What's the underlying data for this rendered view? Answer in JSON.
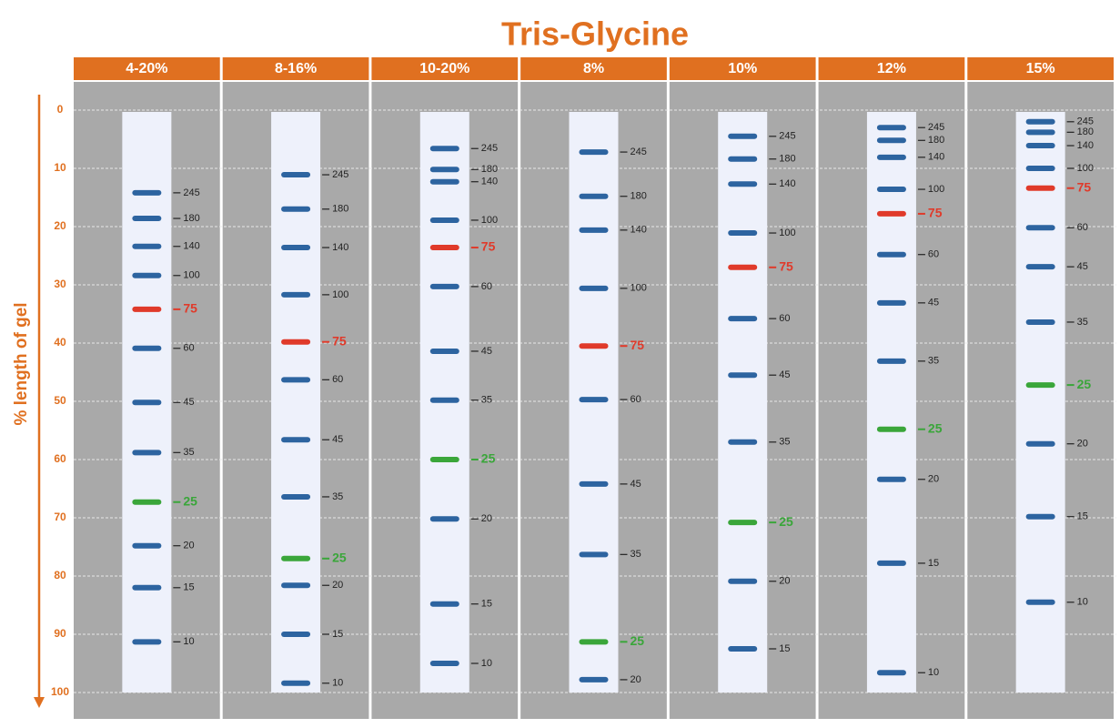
{
  "chart_data": {
    "type": "ladder",
    "title": "Tris-Glycine",
    "y_label": "% length of gel",
    "ylim": [
      0,
      100
    ],
    "yticks": [
      0,
      10,
      20,
      30,
      40,
      50,
      60,
      70,
      80,
      90,
      100
    ],
    "grid": true,
    "band_color": "#2d64a0",
    "series": [
      {
        "name": "4-20%",
        "values": [
          14.2,
          18.6,
          23.4,
          28.4,
          34.2,
          40.9,
          50.2,
          58.8,
          67.3,
          74.8,
          82.0,
          91.3
        ],
        "labels": [
          "245",
          "180",
          "140",
          "100",
          "75",
          "60",
          "45",
          "35",
          "25",
          "20",
          "15",
          "10"
        ],
        "colors": [
          "#2d64a0",
          "#2d64a0",
          "#2d64a0",
          "#2d64a0",
          "#e03a2a",
          "#2d64a0",
          "#2d64a0",
          "#2d64a0",
          "#3aa63a",
          "#2d64a0",
          "#2d64a0",
          "#2d64a0"
        ]
      },
      {
        "name": "8-16%",
        "values": [
          11.1,
          17.0,
          23.6,
          31.7,
          39.8,
          46.3,
          56.6,
          66.4,
          77.0,
          81.6,
          90.0,
          98.4
        ],
        "labels": [
          "245",
          "180",
          "140",
          "100",
          "75",
          "60",
          "45",
          "35",
          "25",
          "20",
          "15",
          "10"
        ],
        "colors": [
          "#2d64a0",
          "#2d64a0",
          "#2d64a0",
          "#2d64a0",
          "#e03a2a",
          "#2d64a0",
          "#2d64a0",
          "#2d64a0",
          "#3aa63a",
          "#2d64a0",
          "#2d64a0",
          "#2d64a0"
        ]
      },
      {
        "name": "10-20%",
        "values": [
          6.6,
          10.2,
          12.3,
          18.9,
          23.6,
          30.3,
          41.4,
          49.8,
          60.0,
          70.2,
          84.8,
          95.0
        ],
        "labels": [
          "245",
          "180",
          "140",
          "100",
          "75",
          "60",
          "45",
          "35",
          "25",
          "20",
          "15",
          "10"
        ],
        "colors": [
          "#2d64a0",
          "#2d64a0",
          "#2d64a0",
          "#2d64a0",
          "#e03a2a",
          "#2d64a0",
          "#2d64a0",
          "#2d64a0",
          "#3aa63a",
          "#2d64a0",
          "#2d64a0",
          "#2d64a0"
        ]
      },
      {
        "name": "8%",
        "values": [
          7.2,
          14.8,
          20.6,
          30.6,
          40.5,
          49.7,
          64.2,
          76.3,
          91.3,
          97.8
        ],
        "labels": [
          "245",
          "180",
          "140",
          "100",
          "75",
          "60",
          "45",
          "35",
          "25",
          "20"
        ],
        "colors": [
          "#2d64a0",
          "#2d64a0",
          "#2d64a0",
          "#2d64a0",
          "#e03a2a",
          "#2d64a0",
          "#2d64a0",
          "#2d64a0",
          "#3aa63a",
          "#2d64a0"
        ]
      },
      {
        "name": "10%",
        "values": [
          4.5,
          8.4,
          12.7,
          21.1,
          27.0,
          35.8,
          45.5,
          57.0,
          70.8,
          80.9,
          92.5
        ],
        "labels": [
          "245",
          "180",
          "140",
          "100",
          "75",
          "60",
          "45",
          "35",
          "25",
          "20",
          "15"
        ],
        "colors": [
          "#2d64a0",
          "#2d64a0",
          "#2d64a0",
          "#2d64a0",
          "#e03a2a",
          "#2d64a0",
          "#2d64a0",
          "#2d64a0",
          "#3aa63a",
          "#2d64a0",
          "#2d64a0"
        ]
      },
      {
        "name": "12%",
        "values": [
          3.0,
          5.2,
          8.1,
          13.6,
          17.8,
          24.8,
          33.1,
          43.1,
          54.8,
          63.4,
          77.8,
          96.6
        ],
        "labels": [
          "245",
          "180",
          "140",
          "100",
          "75",
          "60",
          "45",
          "35",
          "25",
          "20",
          "15",
          "10"
        ],
        "colors": [
          "#2d64a0",
          "#2d64a0",
          "#2d64a0",
          "#2d64a0",
          "#e03a2a",
          "#2d64a0",
          "#2d64a0",
          "#2d64a0",
          "#3aa63a",
          "#2d64a0",
          "#2d64a0",
          "#2d64a0"
        ]
      },
      {
        "name": "15%",
        "values": [
          2.0,
          3.8,
          6.1,
          10.0,
          13.4,
          20.2,
          26.9,
          36.4,
          47.2,
          57.3,
          69.8,
          84.5
        ],
        "labels": [
          "245",
          "180",
          "140",
          "100",
          "75",
          "60",
          "45",
          "35",
          "25",
          "20",
          "15",
          "10"
        ],
        "colors": [
          "#2d64a0",
          "#2d64a0",
          "#2d64a0",
          "#2d64a0",
          "#e03a2a",
          "#2d64a0",
          "#2d64a0",
          "#2d64a0",
          "#3aa63a",
          "#2d64a0",
          "#2d64a0",
          "#2d64a0"
        ]
      }
    ]
  }
}
